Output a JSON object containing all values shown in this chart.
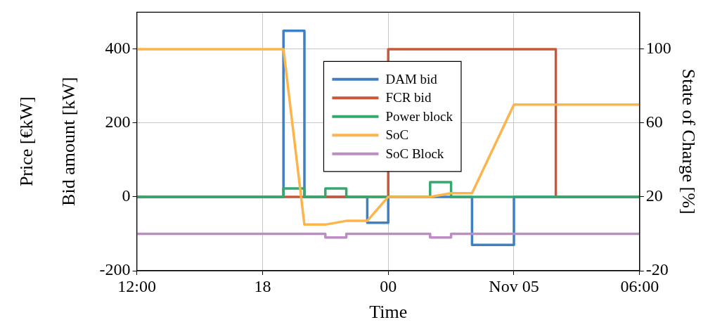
{
  "chart_data": {
    "type": "line",
    "xlabel": "Time",
    "ylabel": "Price [€kW]\nBid amount [kW]",
    "y2label": "State of Charge [%]",
    "xlim": [
      "--11-04T12:00",
      "--11-05T12:00"
    ],
    "xticks": [
      {
        "value": "--11-04T12:00",
        "label": "12:00"
      },
      {
        "value": "--11-04T18:00",
        "label": "18"
      },
      {
        "value": "--11-05T00:00",
        "label": "00"
      },
      {
        "value": "--11-05T06:00",
        "label": "Nov 05"
      },
      {
        "value": "--11-05T12:00",
        "label": "06:00"
      }
    ],
    "ylim": [
      -200,
      500
    ],
    "yticks": [
      -200,
      0,
      200,
      400
    ],
    "y2lim": [
      -20,
      120
    ],
    "y2ticks": [
      -20,
      20,
      60,
      100
    ],
    "grid": true,
    "legend": "top",
    "marker": "none",
    "series": [
      {
        "name": "DAM bid",
        "type": "step",
        "color": "#3f7fc4",
        "x": [
          "--11-04T12:00",
          "--11-04T19:00",
          "--11-04T20:00",
          "--11-04T23:00",
          "--11-05T00:00",
          "--11-05T04:00",
          "--11-05T06:00",
          "--11-05T12:00"
        ],
        "values": [
          0,
          450,
          0,
          -70,
          0,
          -130,
          0,
          0
        ]
      },
      {
        "name": "FCR bid",
        "type": "step",
        "color": "#c8583a",
        "x": [
          "--11-04T12:00",
          "--11-05T00:00",
          "--11-05T08:00",
          "--11-05T12:00"
        ],
        "values": [
          0,
          400,
          0,
          0
        ]
      },
      {
        "name": "Power block",
        "type": "step",
        "color": "#35a86e",
        "x": [
          "--11-04T12:00",
          "--11-04T19:00",
          "--11-04T20:00",
          "--11-04T21:00",
          "--11-04T22:00",
          "--11-05T02:00",
          "--11-05T03:00",
          "--11-05T12:00"
        ],
        "values": [
          0,
          23,
          0,
          23,
          0,
          40,
          0,
          0
        ]
      },
      {
        "name": "SoC",
        "type": "line",
        "axis": "y2",
        "color": "#fdb44a",
        "x": [
          "--11-04T12:00",
          "--11-04T19:00",
          "--11-04T20:00",
          "--11-04T21:00",
          "--11-04T22:00",
          "--11-04T23:00",
          "--11-05T00:00",
          "--11-05T02:00",
          "--11-05T03:00",
          "--11-05T04:00",
          "--11-05T06:00",
          "--11-05T12:00"
        ],
        "values": [
          100,
          100,
          5,
          5,
          7,
          7,
          20,
          20,
          22,
          22,
          70,
          70
        ]
      },
      {
        "name": "SoC Block",
        "type": "step",
        "axis": "y2",
        "color": "#bd8cc4",
        "x": [
          "--11-04T12:00",
          "--11-04T21:00",
          "--11-04T22:00",
          "--11-05T02:00",
          "--11-05T03:00",
          "--11-05T12:00"
        ],
        "values": [
          0,
          -2,
          0,
          -2,
          0,
          0
        ]
      }
    ]
  }
}
